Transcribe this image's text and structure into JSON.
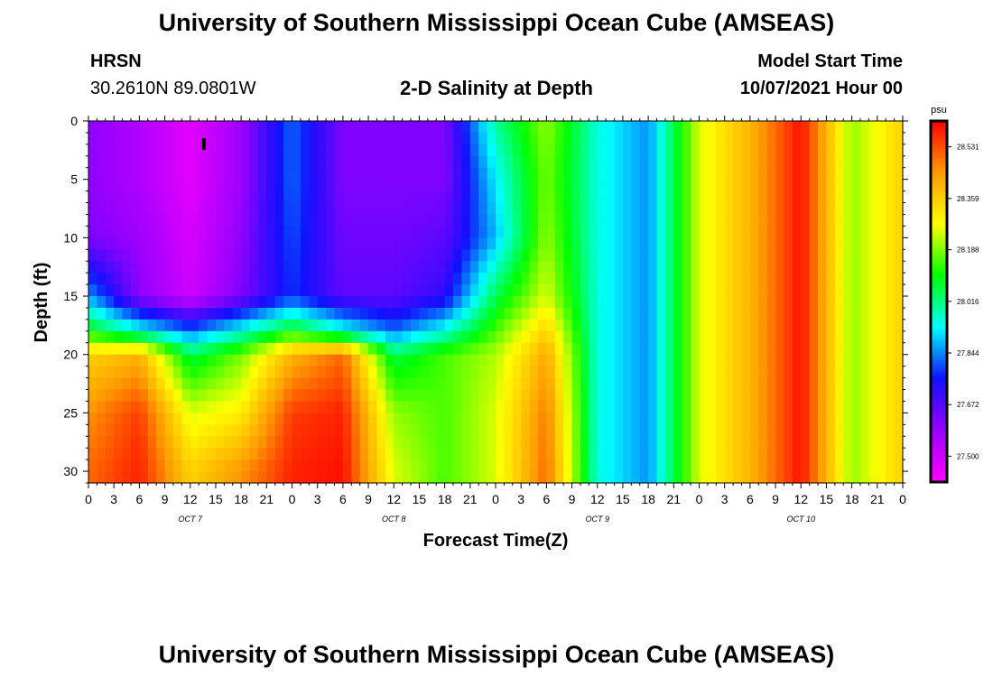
{
  "header": {
    "title": "University of Southern Mississippi Ocean Cube (AMSEAS)",
    "station": "HRSN",
    "coords": "30.2610N  89.0801W",
    "subtitle": "2-D Salinity at Depth",
    "model_start_label": "Model Start Time",
    "model_start_value": "10/07/2021 Hour 00"
  },
  "footer": {
    "title": "University of Southern Mississippi Ocean Cube (AMSEAS)"
  },
  "chart_data": {
    "type": "heatmap",
    "title": "2-D Salinity at Depth",
    "xlabel": "Forecast Time(Z)",
    "ylabel": "Depth (ft)",
    "x_ticks": [
      "0",
      "3",
      "6",
      "9",
      "12",
      "15",
      "18",
      "21",
      "0",
      "3",
      "6",
      "9",
      "12",
      "15",
      "18",
      "21",
      "0",
      "3",
      "6",
      "9",
      "12",
      "15",
      "18",
      "21",
      "0",
      "3",
      "6",
      "9",
      "12",
      "15",
      "18",
      "21",
      "0"
    ],
    "day_labels": [
      {
        "label": "OCT 7",
        "hour": 12
      },
      {
        "label": "OCT 8",
        "hour": 36
      },
      {
        "label": "OCT 9",
        "hour": 60
      },
      {
        "label": "OCT 10",
        "hour": 84
      }
    ],
    "xlim_hours": [
      0,
      96
    ],
    "y_ticks": [
      0,
      5,
      10,
      15,
      20,
      25,
      30
    ],
    "ylim": [
      0,
      31
    ],
    "y_inverted": true,
    "colorbar": {
      "unit": "psu",
      "range": [
        27.414,
        28.617
      ],
      "ticks": [
        "28.531",
        "28.359",
        "28.188",
        "28.016",
        "27.844",
        "27.672",
        "27.500"
      ],
      "colors": [
        "#ff00ff",
        "#9a00ff",
        "#1010ff",
        "#00ffff",
        "#00ff00",
        "#ffff00",
        "#ff9a00",
        "#ff0000"
      ]
    },
    "rows_depth_ft": [
      0,
      5,
      10,
      15,
      18,
      20,
      25,
      30
    ],
    "cols_hours": [
      0,
      6,
      12,
      18,
      24,
      30,
      36,
      42,
      48,
      54,
      60,
      66,
      72,
      78,
      84,
      90,
      96
    ],
    "values": [
      [
        27.6,
        27.55,
        27.46,
        27.58,
        27.82,
        27.62,
        27.62,
        27.62,
        28.0,
        28.2,
        27.95,
        27.85,
        28.25,
        28.4,
        28.6,
        28.2,
        28.35
      ],
      [
        27.6,
        27.55,
        27.46,
        27.58,
        27.82,
        27.62,
        27.62,
        27.62,
        27.92,
        28.18,
        27.95,
        27.85,
        28.25,
        28.4,
        28.6,
        28.2,
        28.35
      ],
      [
        27.62,
        27.58,
        27.48,
        27.6,
        27.8,
        27.64,
        27.64,
        27.66,
        27.88,
        28.2,
        27.95,
        27.85,
        28.25,
        28.4,
        28.6,
        28.2,
        28.35
      ],
      [
        27.86,
        27.6,
        27.5,
        27.62,
        27.78,
        27.66,
        27.66,
        27.72,
        28.05,
        28.25,
        27.95,
        27.85,
        28.25,
        28.4,
        28.6,
        28.2,
        28.35
      ],
      [
        28.1,
        27.95,
        27.82,
        27.95,
        28.1,
        27.95,
        27.82,
        27.95,
        28.15,
        28.35,
        27.95,
        27.85,
        28.25,
        28.4,
        28.6,
        28.2,
        28.35
      ],
      [
        28.35,
        28.4,
        28.05,
        28.18,
        28.4,
        28.5,
        28.05,
        28.15,
        28.22,
        28.42,
        27.95,
        27.85,
        28.25,
        28.4,
        28.6,
        28.2,
        28.35
      ],
      [
        28.45,
        28.55,
        28.25,
        28.3,
        28.55,
        28.58,
        28.2,
        28.15,
        28.25,
        28.48,
        27.95,
        27.85,
        28.25,
        28.4,
        28.6,
        28.2,
        28.35
      ],
      [
        28.5,
        28.58,
        28.35,
        28.45,
        28.58,
        28.6,
        28.25,
        28.15,
        28.25,
        28.5,
        27.95,
        27.85,
        28.25,
        28.4,
        28.6,
        28.2,
        28.35
      ]
    ]
  }
}
